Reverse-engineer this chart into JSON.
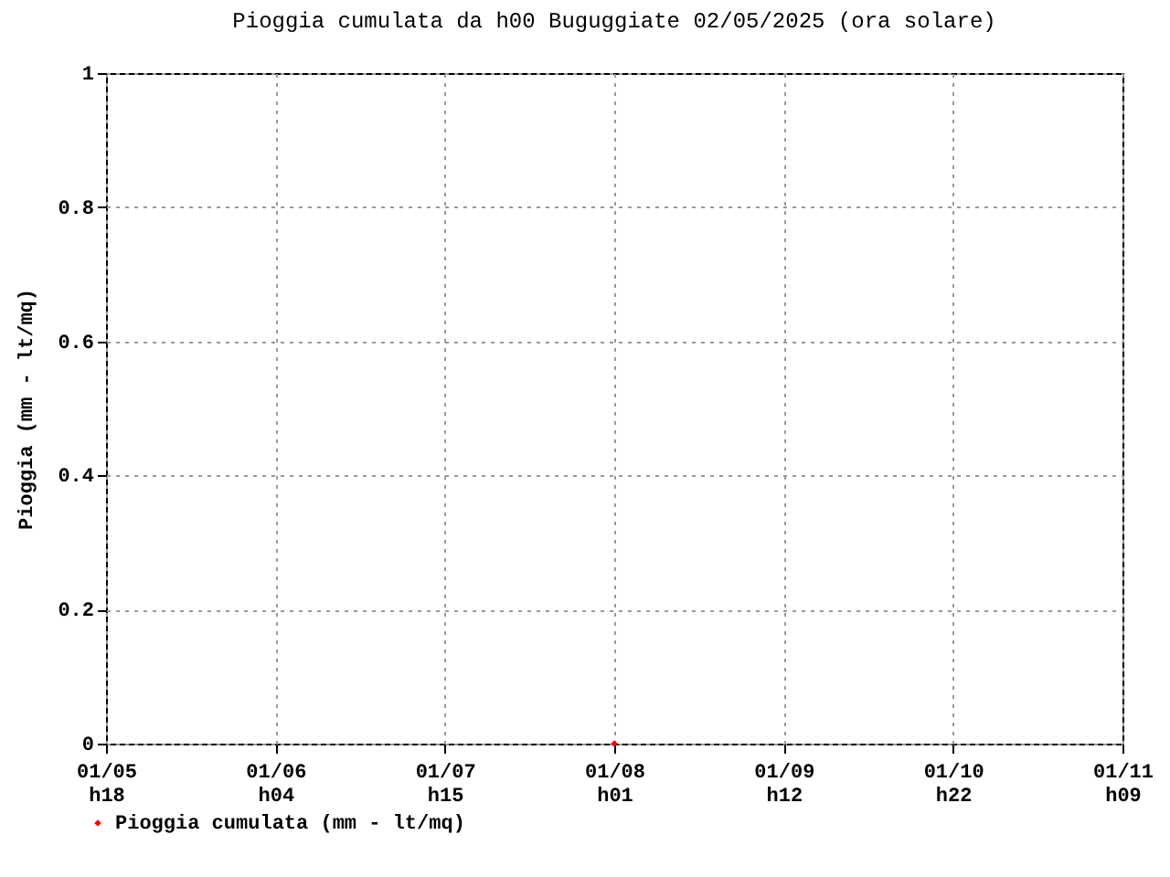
{
  "chart_data": {
    "type": "scatter",
    "title": "Pioggia cumulata da h00 Buguggiate 02/05/2025 (ora solare)",
    "ylabel": "Pioggia (mm - lt/mq)",
    "categories": [
      "01/05\nh18",
      "01/06\nh04",
      "01/07\nh15",
      "01/08\nh01",
      "01/09\nh12",
      "01/10\nh22",
      "01/11\nh09"
    ],
    "series": [
      {
        "name": "Pioggia cumulata (mm - lt/mq)",
        "color": "#ff0000",
        "values": [
          null,
          null,
          null,
          0,
          null,
          null,
          null
        ]
      }
    ],
    "ylim": [
      0,
      1
    ],
    "yticks": [
      0,
      0.2,
      0.4,
      0.6,
      0.8,
      1
    ],
    "grid": true,
    "legend": "bottom left",
    "marker": "diamond"
  }
}
